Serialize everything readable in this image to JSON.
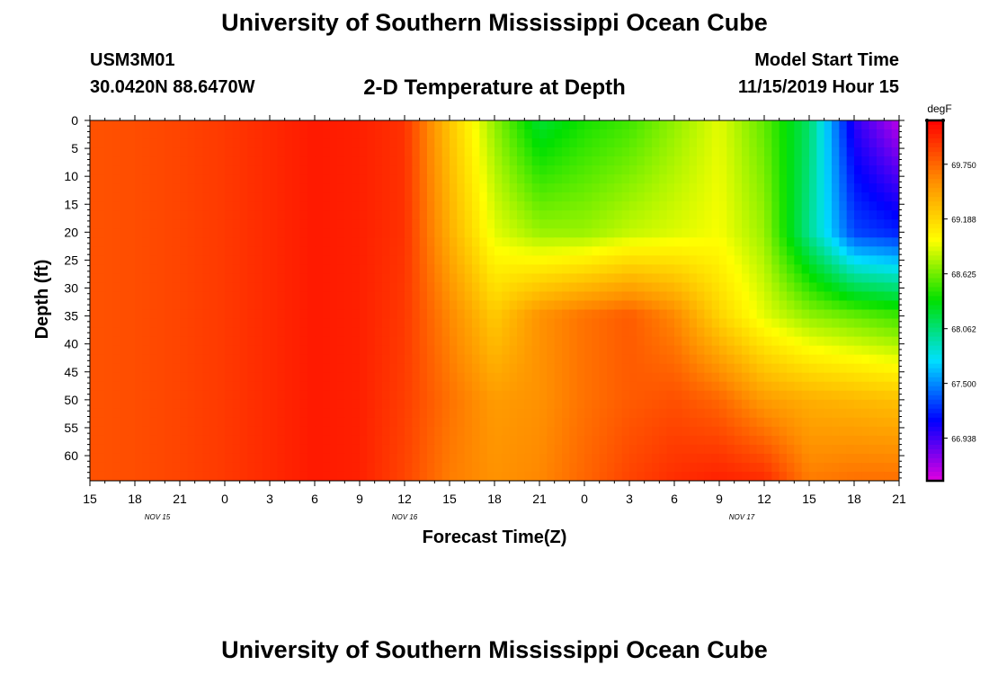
{
  "header": {
    "title": "University of Southern Mississippi Ocean Cube",
    "station_id": "USM3M01",
    "station_coords": "30.0420N 88.6470W",
    "subtitle": "2-D Temperature at Depth",
    "model_start_label": "Model Start Time",
    "model_start_value": "11/15/2019 Hour 15"
  },
  "footer": {
    "title": "University of Southern Mississippi Ocean Cube"
  },
  "chart_data": {
    "type": "heatmap",
    "title": "2-D Temperature at Depth",
    "xlabel": "Forecast Time(Z)",
    "ylabel": "Depth (ft)",
    "x_ticks": [
      "15",
      "18",
      "21",
      "0",
      "3",
      "6",
      "9",
      "12",
      "15",
      "18",
      "21",
      "0",
      "3",
      "6",
      "9",
      "12",
      "15",
      "18",
      "21"
    ],
    "x_range_hours": [
      0,
      54
    ],
    "date_labels": [
      {
        "text": "NOV 15",
        "hour": 4.5
      },
      {
        "text": "NOV 16",
        "hour": 21
      },
      {
        "text": "NOV 17",
        "hour": 43.5
      }
    ],
    "y_ticks": [
      "0",
      "5",
      "10",
      "15",
      "20",
      "25",
      "30",
      "35",
      "40",
      "45",
      "50",
      "55",
      "60"
    ],
    "y_range_ft": [
      0,
      64.5
    ],
    "colorbar": {
      "unit": "degF",
      "labels": [
        "69.750",
        "69.188",
        "68.625",
        "68.062",
        "67.500",
        "66.938"
      ],
      "label_values": [
        69.75,
        69.188,
        68.625,
        68.062,
        67.5,
        66.938
      ],
      "range": [
        66.5,
        70.2
      ],
      "colors": [
        "#e000e0",
        "#0000ff",
        "#00e0ff",
        "#00e000",
        "#ffff00",
        "#ff8c00",
        "#ff0000"
      ]
    },
    "grid_depths_ft": [
      0,
      20,
      35,
      50,
      64
    ],
    "grid_hours": [
      0,
      3,
      6,
      9,
      12,
      15,
      18,
      21,
      24,
      27,
      30,
      33,
      36,
      39,
      42,
      45,
      48,
      51,
      54
    ],
    "temperature_grid_degF": [
      [
        69.84,
        69.86,
        69.9,
        69.95,
        70.02,
        70.09,
        70.06,
        69.98,
        69.28,
        68.7,
        68.22,
        68.4,
        68.5,
        68.7,
        68.9,
        68.58,
        68.1,
        67.0,
        66.6
      ],
      [
        69.84,
        69.86,
        69.9,
        69.95,
        70.02,
        70.09,
        70.06,
        69.98,
        69.4,
        68.9,
        68.72,
        68.72,
        68.82,
        68.88,
        68.95,
        68.72,
        68.0,
        67.3,
        67.2
      ],
      [
        69.84,
        69.86,
        69.9,
        69.95,
        70.02,
        70.09,
        70.06,
        69.95,
        69.6,
        69.25,
        69.55,
        69.7,
        69.8,
        69.6,
        69.2,
        68.9,
        68.7,
        68.6,
        68.5
      ],
      [
        69.84,
        69.86,
        69.9,
        69.95,
        70.02,
        70.09,
        70.06,
        69.93,
        69.7,
        69.5,
        69.55,
        69.7,
        69.8,
        69.85,
        69.75,
        69.5,
        69.4,
        69.35,
        69.3
      ],
      [
        69.84,
        69.86,
        69.9,
        69.95,
        70.02,
        70.09,
        70.06,
        69.9,
        69.65,
        69.55,
        69.6,
        69.75,
        69.9,
        70.0,
        70.05,
        70.0,
        69.65,
        69.7,
        69.7
      ]
    ]
  }
}
